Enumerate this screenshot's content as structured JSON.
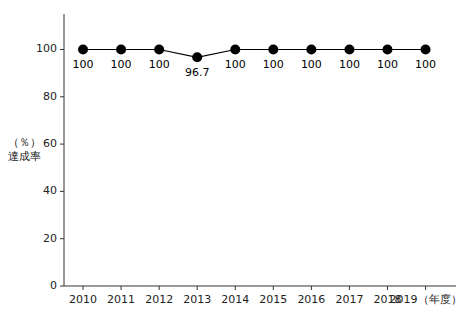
{
  "chart_data": {
    "type": "line",
    "x": [
      2010,
      2011,
      2012,
      2013,
      2014,
      2015,
      2016,
      2017,
      2018,
      2019
    ],
    "values": [
      100,
      100,
      100,
      96.7,
      100,
      100,
      100,
      100,
      100,
      100
    ],
    "y_label": "（％）\n達成率",
    "xlim": [
      2009.5,
      2019.8
    ],
    "xticks": [
      2010,
      2011,
      2012,
      2013,
      2014,
      2015,
      2016,
      2017,
      2018,
      {
        "value": 2019,
        "label": "2019（年度）"
      }
    ],
    "ylim": [
      0,
      115
    ],
    "yticks": [
      0,
      20,
      40,
      60,
      80,
      100
    ],
    "color": "#000000",
    "marker": "circle",
    "data_labels": true,
    "grid": false
  }
}
